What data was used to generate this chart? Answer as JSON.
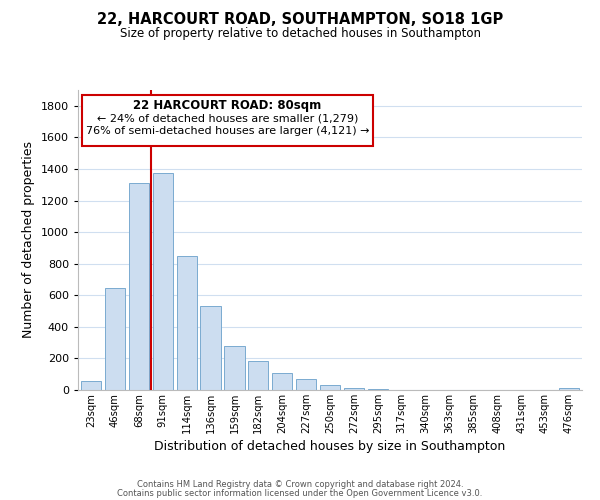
{
  "title": "22, HARCOURT ROAD, SOUTHAMPTON, SO18 1GP",
  "subtitle": "Size of property relative to detached houses in Southampton",
  "xlabel": "Distribution of detached houses by size in Southampton",
  "ylabel": "Number of detached properties",
  "bar_color": "#ccddf0",
  "bar_edge_color": "#7aaad0",
  "background_color": "#ffffff",
  "grid_color": "#d0dff0",
  "annotation_border_color": "#cc0000",
  "vline_color": "#cc0000",
  "vline_x_idx": 2.5,
  "categories": [
    "23sqm",
    "46sqm",
    "68sqm",
    "91sqm",
    "114sqm",
    "136sqm",
    "159sqm",
    "182sqm",
    "204sqm",
    "227sqm",
    "250sqm",
    "272sqm",
    "295sqm",
    "317sqm",
    "340sqm",
    "363sqm",
    "385sqm",
    "408sqm",
    "431sqm",
    "453sqm",
    "476sqm"
  ],
  "values": [
    55,
    645,
    1310,
    1375,
    850,
    530,
    280,
    185,
    105,
    68,
    30,
    15,
    8,
    0,
    0,
    0,
    0,
    0,
    0,
    0,
    10
  ],
  "ylim": [
    0,
    1900
  ],
  "yticks": [
    0,
    200,
    400,
    600,
    800,
    1000,
    1200,
    1400,
    1600,
    1800
  ],
  "annotation_title": "22 HARCOURT ROAD: 80sqm",
  "annotation_line1": "← 24% of detached houses are smaller (1,279)",
  "annotation_line2": "76% of semi-detached houses are larger (4,121) →",
  "footer1": "Contains HM Land Registry data © Crown copyright and database right 2024.",
  "footer2": "Contains public sector information licensed under the Open Government Licence v3.0."
}
